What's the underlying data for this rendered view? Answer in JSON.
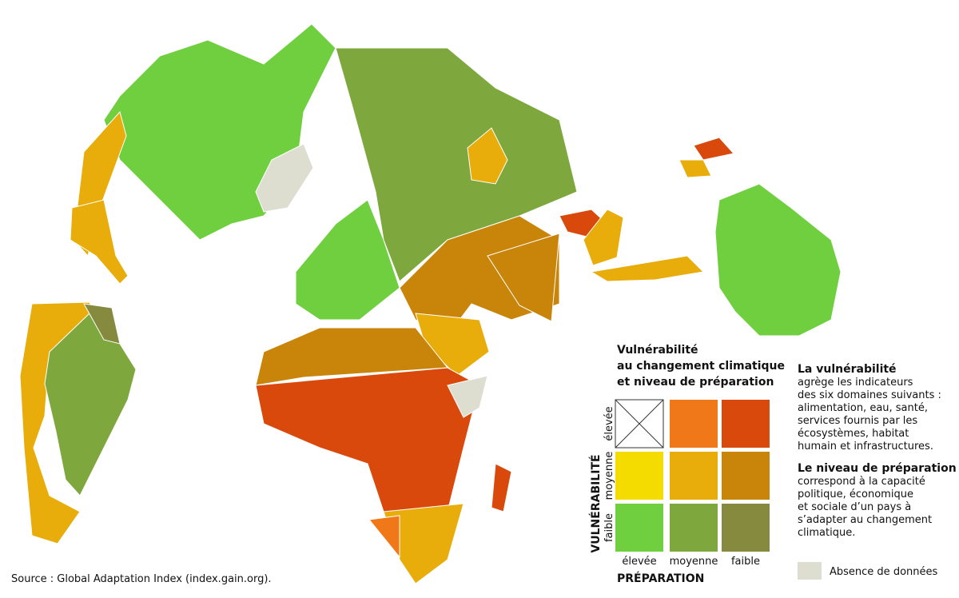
{
  "legend": {
    "title": [
      "Vulnérabilité",
      "au changement climatique",
      "et niveau de préparation"
    ],
    "y_axis_title": "VULNÉRABILITÉ",
    "y_levels": [
      "élevée",
      "moyenne",
      "faible"
    ],
    "x_levels": [
      "élevée",
      "moyenne",
      "faible"
    ],
    "x_axis_title": "PRÉPARATION"
  },
  "notes": [
    {
      "heading": "La vulnérabilité",
      "lines": [
        "agrège les indicateurs",
        "des six domaines suivants :",
        "alimentation, eau, santé,",
        "services fournis par les",
        "écosystèmes, habitat",
        "humain et infrastructures."
      ]
    },
    {
      "heading": "Le niveau de préparation",
      "lines": [
        "correspond à la capacité",
        "politique, économique",
        "et sociale d’un pays à",
        "s’adapter au changement",
        "climatique."
      ]
    }
  ],
  "no_data": "Absence de données",
  "source": "Source : Global Adaptation Index (index.gain.org)."
}
